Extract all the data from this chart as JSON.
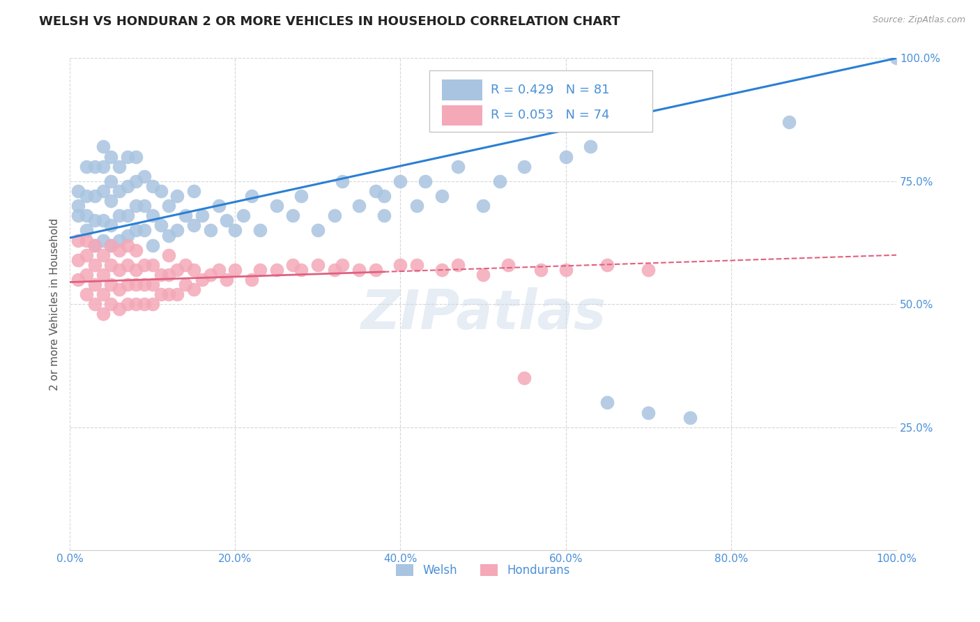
{
  "title": "WELSH VS HONDURAN 2 OR MORE VEHICLES IN HOUSEHOLD CORRELATION CHART",
  "source": "Source: ZipAtlas.com",
  "ylabel": "2 or more Vehicles in Household",
  "legend_welsh_r": "R = 0.429",
  "legend_welsh_n": "N = 81",
  "legend_honduran_r": "R = 0.053",
  "legend_honduran_n": "N = 74",
  "legend_welsh_label": "Welsh",
  "legend_honduran_label": "Hondurans",
  "welsh_color": "#a8c4e0",
  "honduran_color": "#f4a8b8",
  "welsh_line_color": "#2a7fd4",
  "honduran_line_color": "#e06080",
  "background_color": "#ffffff",
  "grid_color": "#cccccc",
  "title_color": "#222222",
  "axis_label_color": "#555555",
  "tick_label_color": "#4a90d9",
  "source_color": "#999999",
  "legend_text_color": "#4a90d9",
  "watermark_text": "ZIPatlas",
  "watermark_color": "#c8d8e8",
  "watermark_alpha": 0.45,
  "xmin": 0.0,
  "xmax": 1.0,
  "ymin": 0.0,
  "ymax": 1.0,
  "x_ticks": [
    0.0,
    0.2,
    0.4,
    0.6,
    0.8,
    1.0
  ],
  "x_tick_labels": [
    "0.0%",
    "20.0%",
    "40.0%",
    "60.0%",
    "80.0%",
    "100.0%"
  ],
  "y_ticks": [
    0.25,
    0.5,
    0.75,
    1.0
  ],
  "y_tick_labels": [
    "25.0%",
    "50.0%",
    "75.0%",
    "100.0%"
  ],
  "welsh_scatter_x": [
    0.01,
    0.01,
    0.01,
    0.02,
    0.02,
    0.02,
    0.02,
    0.03,
    0.03,
    0.03,
    0.03,
    0.04,
    0.04,
    0.04,
    0.04,
    0.04,
    0.05,
    0.05,
    0.05,
    0.05,
    0.05,
    0.06,
    0.06,
    0.06,
    0.06,
    0.07,
    0.07,
    0.07,
    0.07,
    0.08,
    0.08,
    0.08,
    0.08,
    0.09,
    0.09,
    0.09,
    0.1,
    0.1,
    0.1,
    0.11,
    0.11,
    0.12,
    0.12,
    0.13,
    0.13,
    0.14,
    0.15,
    0.15,
    0.16,
    0.17,
    0.18,
    0.19,
    0.2,
    0.21,
    0.22,
    0.23,
    0.25,
    0.27,
    0.28,
    0.3,
    0.32,
    0.33,
    0.35,
    0.37,
    0.38,
    0.38,
    0.4,
    0.42,
    0.43,
    0.45,
    0.47,
    0.5,
    0.52,
    0.55,
    0.6,
    0.63,
    0.65,
    0.7,
    0.75,
    0.87,
    1.0
  ],
  "welsh_scatter_y": [
    0.68,
    0.7,
    0.73,
    0.65,
    0.68,
    0.72,
    0.78,
    0.62,
    0.67,
    0.72,
    0.78,
    0.63,
    0.67,
    0.73,
    0.78,
    0.82,
    0.62,
    0.66,
    0.71,
    0.75,
    0.8,
    0.63,
    0.68,
    0.73,
    0.78,
    0.64,
    0.68,
    0.74,
    0.8,
    0.65,
    0.7,
    0.75,
    0.8,
    0.65,
    0.7,
    0.76,
    0.62,
    0.68,
    0.74,
    0.66,
    0.73,
    0.64,
    0.7,
    0.65,
    0.72,
    0.68,
    0.66,
    0.73,
    0.68,
    0.65,
    0.7,
    0.67,
    0.65,
    0.68,
    0.72,
    0.65,
    0.7,
    0.68,
    0.72,
    0.65,
    0.68,
    0.75,
    0.7,
    0.73,
    0.68,
    0.72,
    0.75,
    0.7,
    0.75,
    0.72,
    0.78,
    0.7,
    0.75,
    0.78,
    0.8,
    0.82,
    0.3,
    0.28,
    0.27,
    0.87,
    1.0
  ],
  "honduran_scatter_x": [
    0.01,
    0.01,
    0.01,
    0.02,
    0.02,
    0.02,
    0.02,
    0.03,
    0.03,
    0.03,
    0.03,
    0.04,
    0.04,
    0.04,
    0.04,
    0.05,
    0.05,
    0.05,
    0.05,
    0.06,
    0.06,
    0.06,
    0.06,
    0.07,
    0.07,
    0.07,
    0.07,
    0.08,
    0.08,
    0.08,
    0.08,
    0.09,
    0.09,
    0.09,
    0.1,
    0.1,
    0.1,
    0.11,
    0.11,
    0.12,
    0.12,
    0.12,
    0.13,
    0.13,
    0.14,
    0.14,
    0.15,
    0.15,
    0.16,
    0.17,
    0.18,
    0.19,
    0.2,
    0.22,
    0.23,
    0.25,
    0.27,
    0.28,
    0.3,
    0.32,
    0.33,
    0.35,
    0.37,
    0.4,
    0.42,
    0.45,
    0.47,
    0.5,
    0.53,
    0.55,
    0.57,
    0.6,
    0.65,
    0.7
  ],
  "honduran_scatter_y": [
    0.55,
    0.59,
    0.63,
    0.52,
    0.56,
    0.6,
    0.63,
    0.5,
    0.54,
    0.58,
    0.62,
    0.48,
    0.52,
    0.56,
    0.6,
    0.5,
    0.54,
    0.58,
    0.62,
    0.49,
    0.53,
    0.57,
    0.61,
    0.5,
    0.54,
    0.58,
    0.62,
    0.5,
    0.54,
    0.57,
    0.61,
    0.5,
    0.54,
    0.58,
    0.5,
    0.54,
    0.58,
    0.52,
    0.56,
    0.52,
    0.56,
    0.6,
    0.52,
    0.57,
    0.54,
    0.58,
    0.53,
    0.57,
    0.55,
    0.56,
    0.57,
    0.55,
    0.57,
    0.55,
    0.57,
    0.57,
    0.58,
    0.57,
    0.58,
    0.57,
    0.58,
    0.57,
    0.57,
    0.58,
    0.58,
    0.57,
    0.58,
    0.56,
    0.58,
    0.35,
    0.57,
    0.57,
    0.58,
    0.57
  ]
}
